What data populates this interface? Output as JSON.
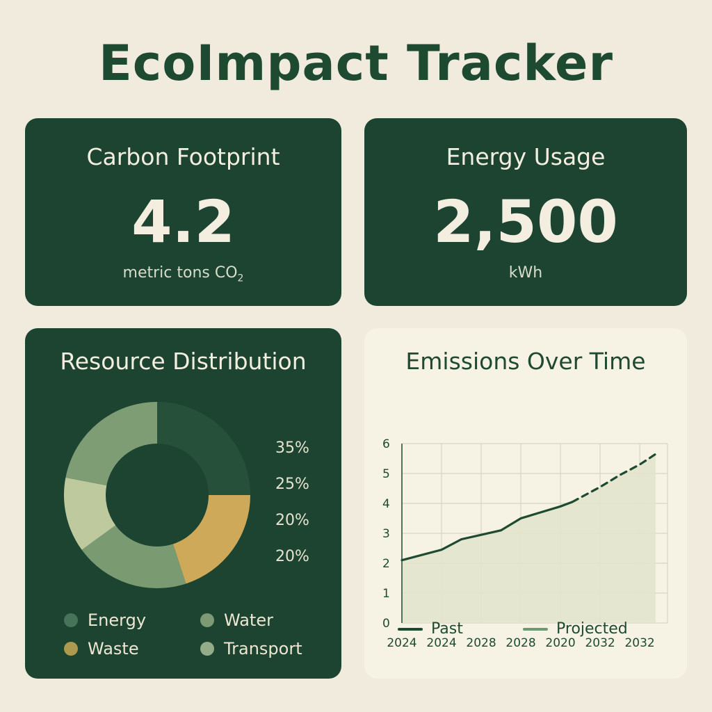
{
  "app": {
    "title": "EcoImpact Tracker"
  },
  "carbon": {
    "title": "Carbon Footprint",
    "value": "4.2",
    "unit_prefix": "metric tons CO",
    "unit_sub": "2"
  },
  "energy": {
    "title": "Energy Usage",
    "value": "2,500",
    "unit": "kWh"
  },
  "resources": {
    "title": "Resource Distribution",
    "percent_labels": [
      "35%",
      "25%",
      "20%",
      "20%"
    ],
    "legend": [
      {
        "label": "Energy",
        "color": "#46735a"
      },
      {
        "label": "Water",
        "color": "#7d9a75"
      },
      {
        "label": "Waste",
        "color": "#ad9a4e"
      },
      {
        "label": "Transport",
        "color": "#93ad89"
      }
    ],
    "colors": {
      "dark": "#27503a",
      "yellow": "#cea95a",
      "mid": "#7a9b72",
      "pale": "#bfc99e",
      "sage": "#7e9d75"
    }
  },
  "emissions": {
    "title": "Emissions Over Time",
    "legend_past": "Past",
    "legend_projected": "Projected",
    "colors": {
      "past": "#1d4a31",
      "projected": "#6e9a72",
      "fill": "#e3e4cc"
    }
  },
  "chart_data": [
    {
      "type": "pie",
      "title": "Resource Distribution",
      "labels": [
        "35%",
        "25%",
        "20%",
        "20%"
      ],
      "slices": [
        {
          "value": 25
        },
        {
          "value": 20
        },
        {
          "value": 20
        },
        {
          "value": 13
        },
        {
          "value": 22
        }
      ]
    },
    {
      "type": "line",
      "title": "Emissions Over Time",
      "x_tick_labels": [
        "2024",
        "2024",
        "2028",
        "2028",
        "2020",
        "2032",
        "2032"
      ],
      "xlim": [
        0,
        6.7
      ],
      "ylim": [
        0,
        6
      ],
      "y_ticks": [
        0,
        1,
        2,
        3,
        4,
        5,
        6
      ],
      "grid": true,
      "legend_position": "bottom",
      "series": [
        {
          "name": "Past",
          "style": "solid",
          "points": [
            [
              0,
              2.1
            ],
            [
              1,
              2.45
            ],
            [
              1.5,
              2.8
            ],
            [
              2,
              2.95
            ],
            [
              2.5,
              3.1
            ],
            [
              3,
              3.5
            ],
            [
              3.5,
              3.7
            ],
            [
              4,
              3.9
            ],
            [
              4.3,
              4.05
            ]
          ]
        },
        {
          "name": "Projected",
          "style": "dashed",
          "points": [
            [
              4.3,
              4.05
            ],
            [
              5,
              4.55
            ],
            [
              5.5,
              4.95
            ],
            [
              6,
              5.3
            ],
            [
              6.4,
              5.65
            ]
          ]
        }
      ]
    }
  ]
}
